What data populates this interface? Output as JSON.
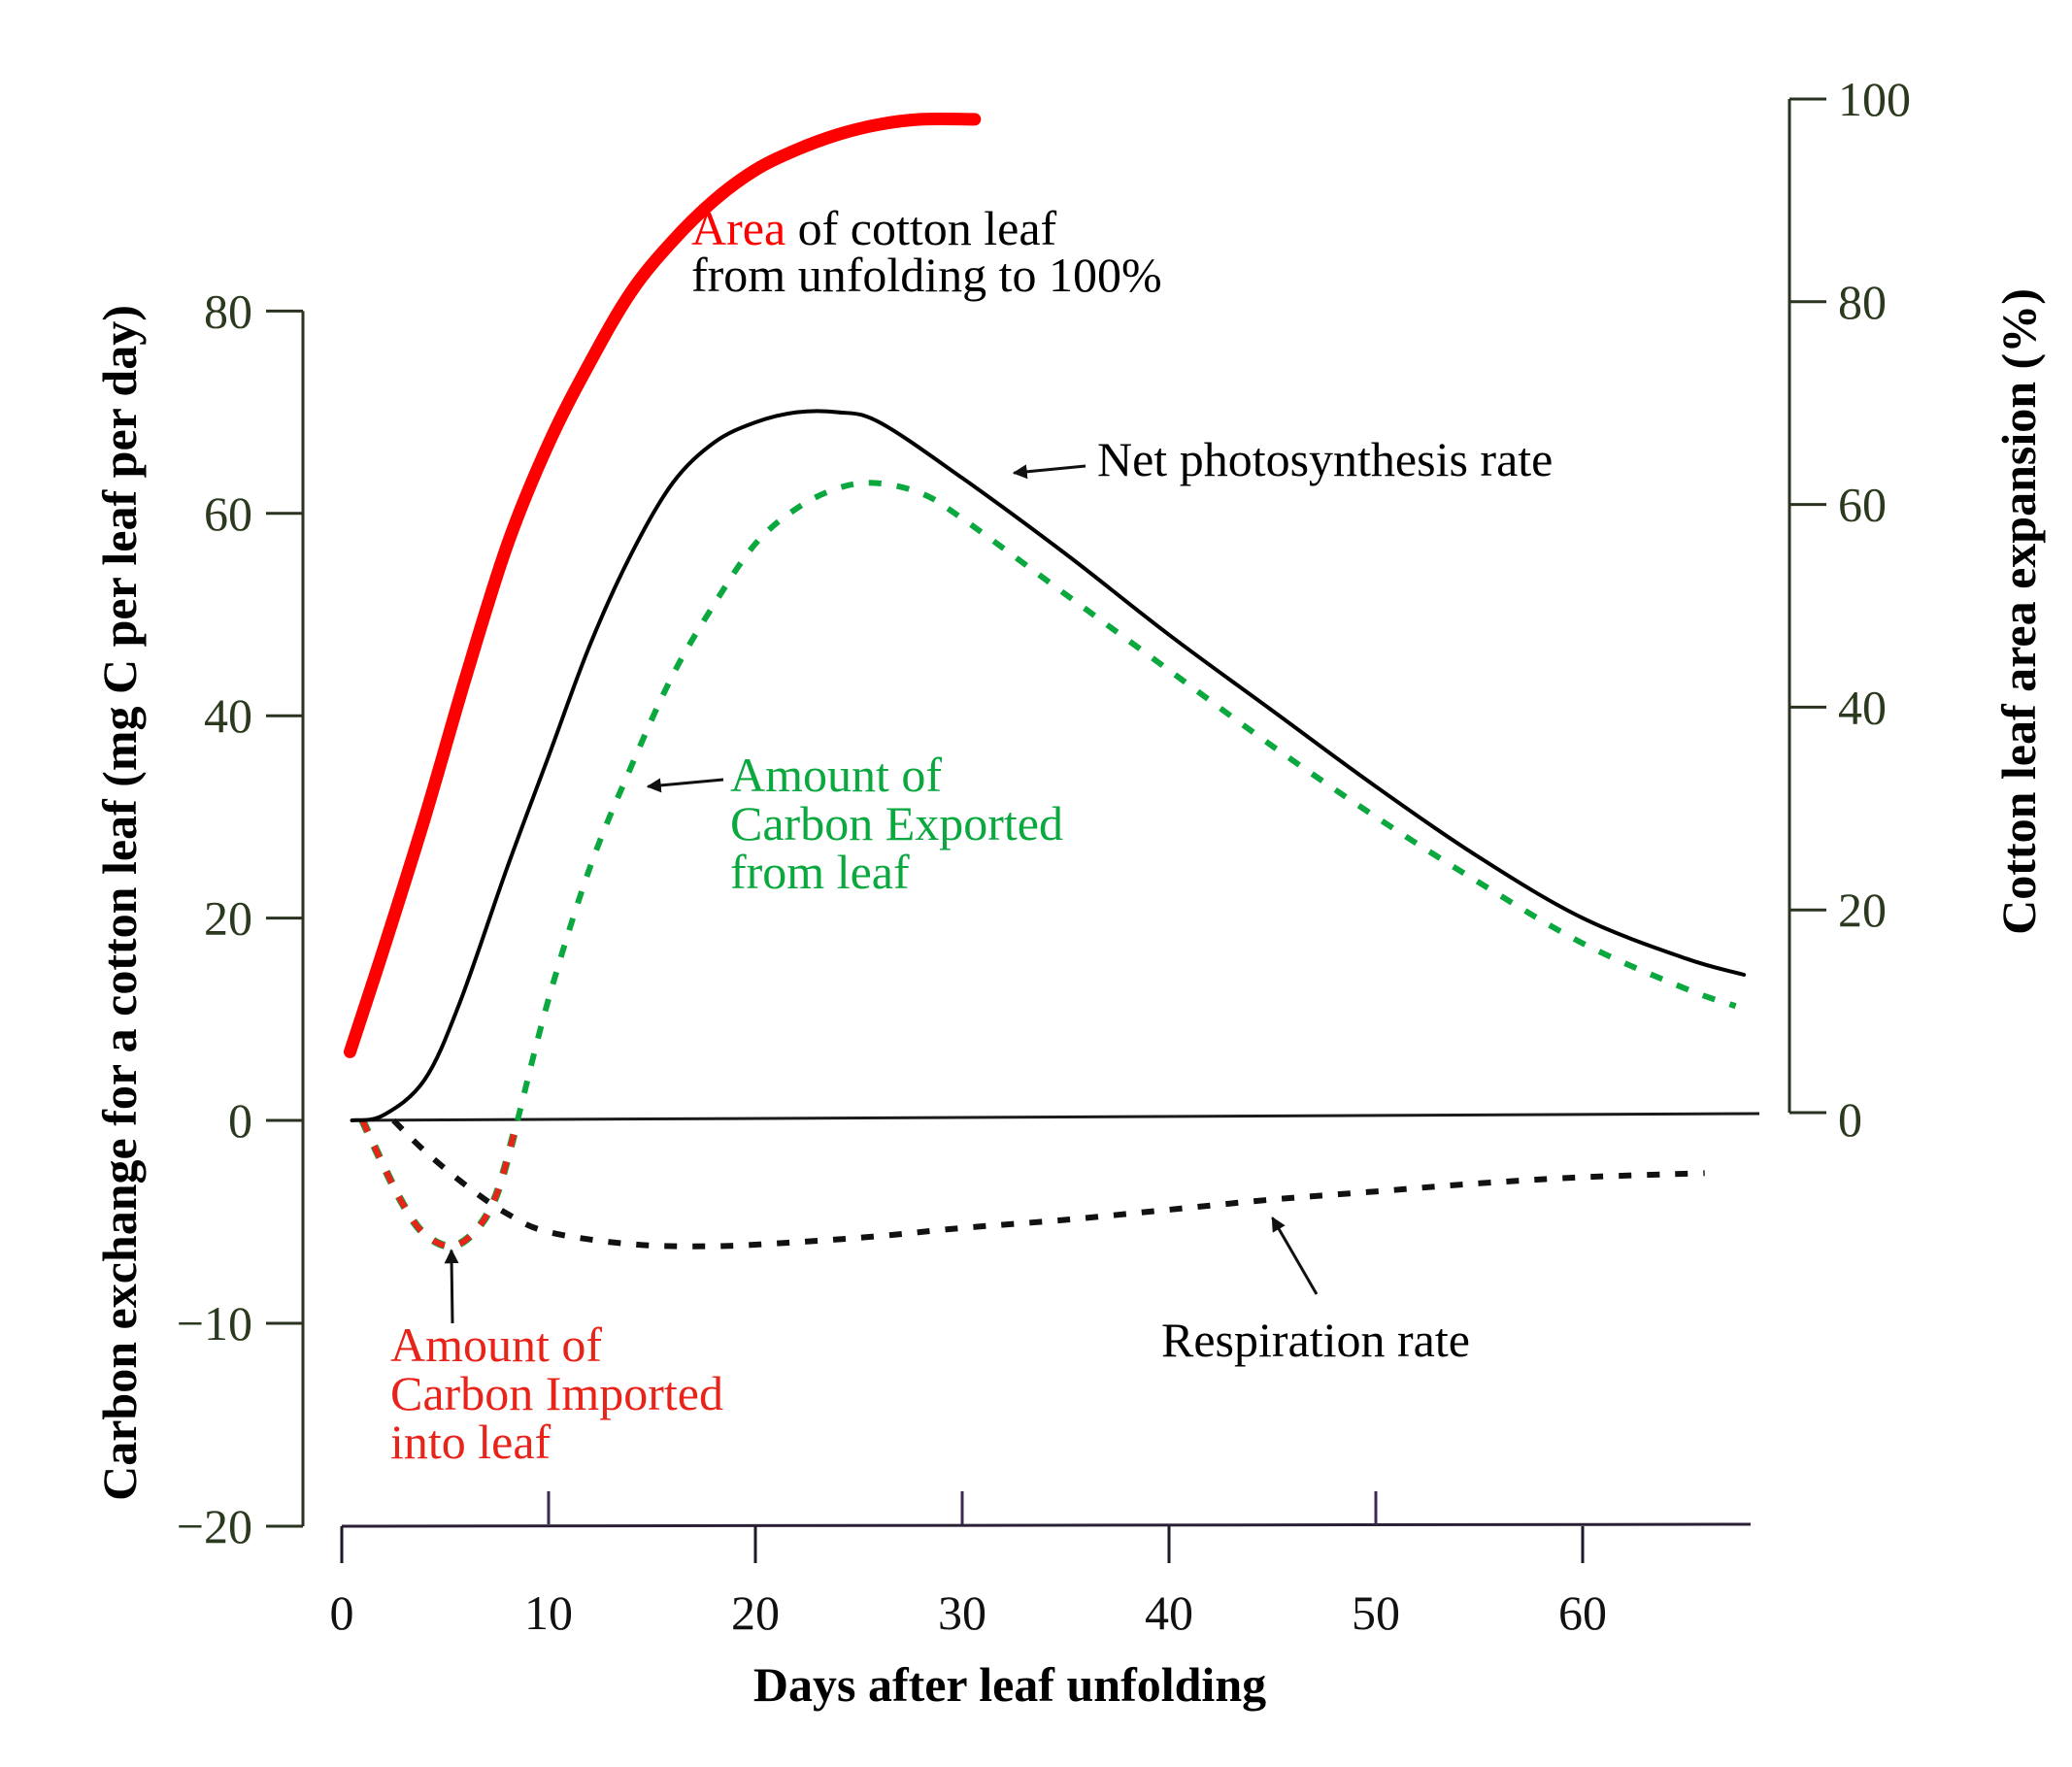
{
  "chart_data": {
    "type": "line",
    "title": "",
    "xlabel": "Days after leaf unfolding",
    "ylabel_left": "Carbon exchange for a cotton leaf (mg C per leaf per day)",
    "ylabel_right": "Cotton leaf area expansion (%)",
    "xlim": [
      0,
      68
    ],
    "ylim_left": [
      -20,
      80
    ],
    "ylim_right": [
      0,
      100
    ],
    "left_axis_note": "piecewise scale: positive region 20 units per major tick, negative region 10 units per major tick",
    "x_ticks": [
      0,
      10,
      20,
      30,
      40,
      50,
      60
    ],
    "x_tick_labels": [
      "0",
      "10",
      "20",
      "30",
      "40",
      "50",
      "60"
    ],
    "left_ticks": [
      80,
      60,
      40,
      20,
      0,
      -10,
      -20
    ],
    "left_tick_labels": [
      "80",
      "60",
      "40",
      "20",
      "0",
      "−10",
      "−20"
    ],
    "right_ticks": [
      100,
      80,
      60,
      40,
      20,
      0
    ],
    "right_tick_labels": [
      "100",
      "80",
      "60",
      "40",
      "20",
      "0"
    ],
    "grid": false,
    "series": [
      {
        "name": "Area of cotton leaf from unfolding to 100%",
        "axis": "right",
        "style": "solid-thick",
        "color": "#ff0000",
        "x": [
          0.4,
          2,
          4,
          6,
          8,
          10,
          12,
          14,
          16,
          18,
          20,
          22,
          24,
          26,
          28,
          30.6
        ],
        "y": [
          6,
          16,
          29,
          43,
          56,
          66,
          74,
          81,
          86,
          90,
          93,
          95,
          96.5,
          97.5,
          98,
          98
        ]
      },
      {
        "name": "Net photosynthesis rate",
        "axis": "left",
        "style": "solid",
        "color": "#000000",
        "x": [
          0.5,
          2,
          4,
          5.7,
          8,
          10,
          12,
          14,
          16,
          18,
          20,
          22,
          24,
          26,
          30,
          35,
          40,
          45,
          50,
          55,
          60,
          65,
          67.8
        ],
        "y": [
          0,
          0.5,
          4,
          11.6,
          25,
          36,
          47,
          56,
          63,
          67,
          69,
          70,
          70,
          69,
          63.5,
          56,
          48,
          40.5,
          33,
          26,
          20,
          16,
          14.4
        ]
      },
      {
        "name": "Amount of Carbon Exported from leaf",
        "axis": "left",
        "style": "dashed",
        "color": "#0aa83e",
        "x": [
          8.5,
          10,
          12,
          14,
          16,
          18,
          20,
          22,
          24,
          25.8,
          28,
          30,
          35,
          40,
          45,
          50,
          55,
          60,
          65,
          67.4
        ],
        "y": [
          0,
          12,
          25,
          35,
          44,
          51,
          57,
          60.5,
          62.5,
          63,
          62,
          59.5,
          52,
          44.5,
          37,
          30,
          23.5,
          17.5,
          13,
          11.3
        ]
      },
      {
        "name": "Amount of Carbon Imported into leaf",
        "axis": "left",
        "style": "dashed",
        "color": "#e8231a",
        "x": [
          1,
          2,
          3,
          4,
          5.3,
          6.5,
          7.5,
          8.5
        ],
        "y": [
          0,
          -2.2,
          -4.2,
          -5.6,
          -6.2,
          -5.4,
          -3.6,
          0
        ]
      },
      {
        "name": "Respiration rate",
        "axis": "left",
        "style": "dashed",
        "color": "#111111",
        "x": [
          2.5,
          4,
          6,
          8,
          10,
          14,
          18,
          22,
          26,
          30,
          35,
          40,
          45,
          50,
          55,
          60,
          65.9
        ],
        "y": [
          0,
          -1.5,
          -3.2,
          -4.6,
          -5.5,
          -6.1,
          -6.2,
          -6.0,
          -5.7,
          -5.3,
          -4.9,
          -4.4,
          -3.9,
          -3.5,
          -3.1,
          -2.8,
          -2.6
        ]
      }
    ],
    "annotations": [
      {
        "id": "area",
        "lines": [
          [
            "Area",
            " of cotton leaf"
          ],
          [
            "from unfolding to 100%"
          ]
        ],
        "highlight_color": "#ff0000",
        "color": "#000000"
      },
      {
        "id": "net",
        "lines": [
          [
            "Net photosynthesis rate"
          ]
        ],
        "color": "#000000",
        "arrow_to": {
          "x": 32.5,
          "y": 64
        }
      },
      {
        "id": "export",
        "lines": [
          [
            "Amount of"
          ],
          [
            "Carbon Exported"
          ],
          [
            "from leaf"
          ]
        ],
        "color": "#0aa83e",
        "arrow_to": {
          "x": 14.8,
          "y": 33
        }
      },
      {
        "id": "import",
        "lines": [
          [
            "Amount of"
          ],
          [
            "Carbon Imported"
          ],
          [
            "into leaf"
          ]
        ],
        "color": "#e8231a",
        "arrow_to": {
          "x": 5.3,
          "y": -6.4
        }
      },
      {
        "id": "respiration",
        "lines": [
          [
            "Respiration rate"
          ]
        ],
        "color": "#000000",
        "arrow_to": {
          "x": 45,
          "y": -4.8
        }
      }
    ]
  }
}
